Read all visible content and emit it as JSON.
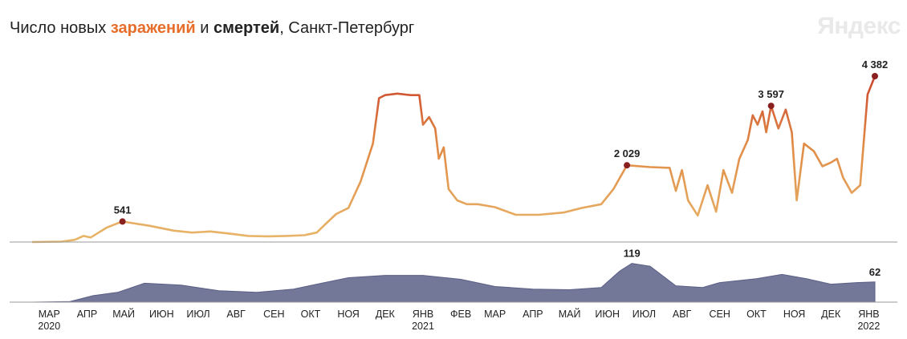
{
  "title": {
    "part1": "Число новых ",
    "infections_word": "заражений",
    "part2": " и ",
    "deaths_word": "смертей",
    "part3": ", Санкт-Петербург"
  },
  "brand": "Яндекс",
  "colors": {
    "infections_low": "#e8b66a",
    "infections_high": "#c73a2a",
    "peak_dot": "#8a1f1f",
    "deaths_fill": "#5b5f86",
    "axis": "#999999"
  },
  "chart_data": [
    {
      "type": "line",
      "name": "infections",
      "x_start": "2020-03-01",
      "x_end": "2022-01-20",
      "ylim": [
        0,
        4700
      ],
      "points": [
        [
          "2020-03-01",
          0
        ],
        [
          "2020-03-25",
          10
        ],
        [
          "2020-04-05",
          60
        ],
        [
          "2020-04-12",
          160
        ],
        [
          "2020-04-18",
          120
        ],
        [
          "2020-04-25",
          260
        ],
        [
          "2020-05-01",
          380
        ],
        [
          "2020-05-08",
          470
        ],
        [
          "2020-05-14",
          541
        ],
        [
          "2020-05-22",
          500
        ],
        [
          "2020-06-05",
          430
        ],
        [
          "2020-06-25",
          300
        ],
        [
          "2020-07-10",
          250
        ],
        [
          "2020-07-25",
          280
        ],
        [
          "2020-08-10",
          220
        ],
        [
          "2020-08-25",
          160
        ],
        [
          "2020-09-10",
          150
        ],
        [
          "2020-09-25",
          160
        ],
        [
          "2020-10-10",
          180
        ],
        [
          "2020-10-20",
          250
        ],
        [
          "2020-10-28",
          500
        ],
        [
          "2020-11-05",
          740
        ],
        [
          "2020-11-15",
          900
        ],
        [
          "2020-11-25",
          1600
        ],
        [
          "2020-12-05",
          2600
        ],
        [
          "2020-12-10",
          3800
        ],
        [
          "2020-12-15",
          3880
        ],
        [
          "2020-12-25",
          3920
        ],
        [
          "2021-01-05",
          3880
        ],
        [
          "2021-01-12",
          3880
        ],
        [
          "2021-01-15",
          3100
        ],
        [
          "2021-01-20",
          3300
        ],
        [
          "2021-01-25",
          3000
        ],
        [
          "2021-01-28",
          2200
        ],
        [
          "2021-02-01",
          2500
        ],
        [
          "2021-02-05",
          1400
        ],
        [
          "2021-02-12",
          1100
        ],
        [
          "2021-02-20",
          1000
        ],
        [
          "2021-03-01",
          1000
        ],
        [
          "2021-03-15",
          920
        ],
        [
          "2021-04-01",
          720
        ],
        [
          "2021-04-20",
          720
        ],
        [
          "2021-05-10",
          780
        ],
        [
          "2021-05-25",
          900
        ],
        [
          "2021-06-10",
          1000
        ],
        [
          "2021-06-20",
          1400
        ],
        [
          "2021-07-01",
          2029
        ],
        [
          "2021-07-20",
          1980
        ],
        [
          "2021-08-05",
          1960
        ],
        [
          "2021-08-10",
          1350
        ],
        [
          "2021-08-15",
          1900
        ],
        [
          "2021-08-20",
          1100
        ],
        [
          "2021-08-28",
          700
        ],
        [
          "2021-09-05",
          1500
        ],
        [
          "2021-09-12",
          800
        ],
        [
          "2021-09-18",
          1900
        ],
        [
          "2021-09-25",
          1300
        ],
        [
          "2021-10-01",
          2200
        ],
        [
          "2021-10-08",
          2700
        ],
        [
          "2021-10-12",
          3350
        ],
        [
          "2021-10-16",
          3100
        ],
        [
          "2021-10-20",
          3450
        ],
        [
          "2021-10-23",
          2900
        ],
        [
          "2021-10-27",
          3597
        ],
        [
          "2021-11-02",
          3000
        ],
        [
          "2021-11-08",
          3500
        ],
        [
          "2021-11-13",
          2900
        ],
        [
          "2021-11-17",
          1100
        ],
        [
          "2021-11-23",
          2600
        ],
        [
          "2021-12-01",
          2400
        ],
        [
          "2021-12-08",
          2000
        ],
        [
          "2021-12-15",
          2100
        ],
        [
          "2021-12-20",
          2200
        ],
        [
          "2021-12-25",
          1700
        ],
        [
          "2022-01-01",
          1300
        ],
        [
          "2022-01-08",
          1500
        ],
        [
          "2022-01-14",
          3900
        ],
        [
          "2022-01-20",
          4382
        ]
      ],
      "annotations": [
        {
          "date": "2020-05-14",
          "value": 541,
          "label": "541"
        },
        {
          "date": "2021-07-01",
          "value": 2029,
          "label": "2 029"
        },
        {
          "date": "2021-10-27",
          "value": 3597,
          "label": "3 597"
        },
        {
          "date": "2022-01-20",
          "value": 4382,
          "label": "4 382"
        }
      ]
    },
    {
      "type": "area",
      "name": "deaths",
      "x_start": "2020-03-01",
      "x_end": "2022-01-20",
      "ylim": [
        0,
        140
      ],
      "points": [
        [
          "2020-03-01",
          0
        ],
        [
          "2020-04-01",
          2
        ],
        [
          "2020-04-20",
          20
        ],
        [
          "2020-05-10",
          30
        ],
        [
          "2020-06-01",
          58
        ],
        [
          "2020-07-01",
          52
        ],
        [
          "2020-08-01",
          35
        ],
        [
          "2020-09-01",
          30
        ],
        [
          "2020-10-01",
          40
        ],
        [
          "2020-10-20",
          55
        ],
        [
          "2020-11-15",
          75
        ],
        [
          "2020-12-15",
          82
        ],
        [
          "2021-01-15",
          82
        ],
        [
          "2021-02-15",
          70
        ],
        [
          "2021-03-15",
          48
        ],
        [
          "2021-04-15",
          40
        ],
        [
          "2021-05-15",
          38
        ],
        [
          "2021-06-10",
          45
        ],
        [
          "2021-06-25",
          95
        ],
        [
          "2021-07-05",
          119
        ],
        [
          "2021-07-20",
          110
        ],
        [
          "2021-08-10",
          50
        ],
        [
          "2021-09-01",
          45
        ],
        [
          "2021-09-15",
          60
        ],
        [
          "2021-10-15",
          72
        ],
        [
          "2021-11-05",
          85
        ],
        [
          "2021-11-25",
          72
        ],
        [
          "2021-12-15",
          55
        ],
        [
          "2022-01-05",
          60
        ],
        [
          "2022-01-20",
          62
        ]
      ],
      "annotations": [
        {
          "date": "2021-07-05",
          "value": 119,
          "label": "119"
        },
        {
          "date": "2022-01-20",
          "value": 62,
          "label": "62"
        }
      ]
    }
  ],
  "x_axis": {
    "ticks": [
      {
        "date": "2020-03-15",
        "label": "МАР",
        "year": "2020"
      },
      {
        "date": "2020-04-15",
        "label": "АПР"
      },
      {
        "date": "2020-05-15",
        "label": "МАЙ"
      },
      {
        "date": "2020-06-15",
        "label": "ИЮН"
      },
      {
        "date": "2020-07-15",
        "label": "ИЮЛ"
      },
      {
        "date": "2020-08-15",
        "label": "АВГ"
      },
      {
        "date": "2020-09-15",
        "label": "СЕН"
      },
      {
        "date": "2020-10-15",
        "label": "ОКТ"
      },
      {
        "date": "2020-11-15",
        "label": "НОЯ"
      },
      {
        "date": "2020-12-15",
        "label": "ДЕК"
      },
      {
        "date": "2021-01-15",
        "label": "ЯНВ",
        "year": "2021"
      },
      {
        "date": "2021-02-15",
        "label": "ФЕВ"
      },
      {
        "date": "2021-03-15",
        "label": "МАР"
      },
      {
        "date": "2021-04-15",
        "label": "АПР"
      },
      {
        "date": "2021-05-15",
        "label": "МАЙ"
      },
      {
        "date": "2021-06-15",
        "label": "ИЮН"
      },
      {
        "date": "2021-07-15",
        "label": "ИЮЛ"
      },
      {
        "date": "2021-08-15",
        "label": "АВГ"
      },
      {
        "date": "2021-09-15",
        "label": "СЕН"
      },
      {
        "date": "2021-10-15",
        "label": "ОКТ"
      },
      {
        "date": "2021-11-15",
        "label": "НОЯ"
      },
      {
        "date": "2021-12-15",
        "label": "ДЕК"
      },
      {
        "date": "2022-01-15",
        "label": "ЯНВ",
        "year": "2022"
      }
    ]
  }
}
